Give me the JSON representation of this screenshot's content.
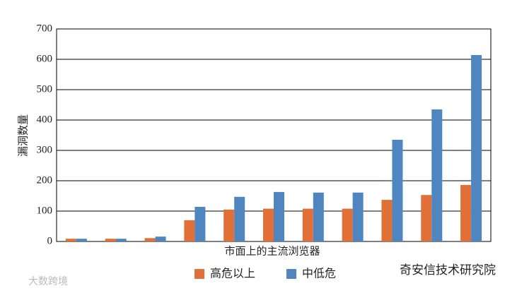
{
  "chart_data": {
    "type": "bar",
    "ylabel": "漏洞数量",
    "xlabel": "市面上的主流浏览器",
    "categories": [
      null,
      null,
      null,
      null,
      null,
      null,
      null,
      null,
      null,
      null,
      null
    ],
    "series": [
      {
        "name": "高危以上",
        "color": "#e07038",
        "values": [
          9,
          9,
          11,
          70,
          105,
          108,
          108,
          108,
          137,
          153,
          186
        ]
      },
      {
        "name": "中低危",
        "color": "#4f86c0",
        "values": [
          9,
          9,
          16,
          114,
          147,
          163,
          161,
          161,
          335,
          435,
          614
        ]
      }
    ],
    "ylim": [
      0,
      700
    ],
    "yticks": [
      0,
      100,
      200,
      300,
      400,
      500,
      600,
      700
    ],
    "grid": true
  },
  "watermarks": [
    "大数跨境",
    "奇安信技术研究院"
  ]
}
